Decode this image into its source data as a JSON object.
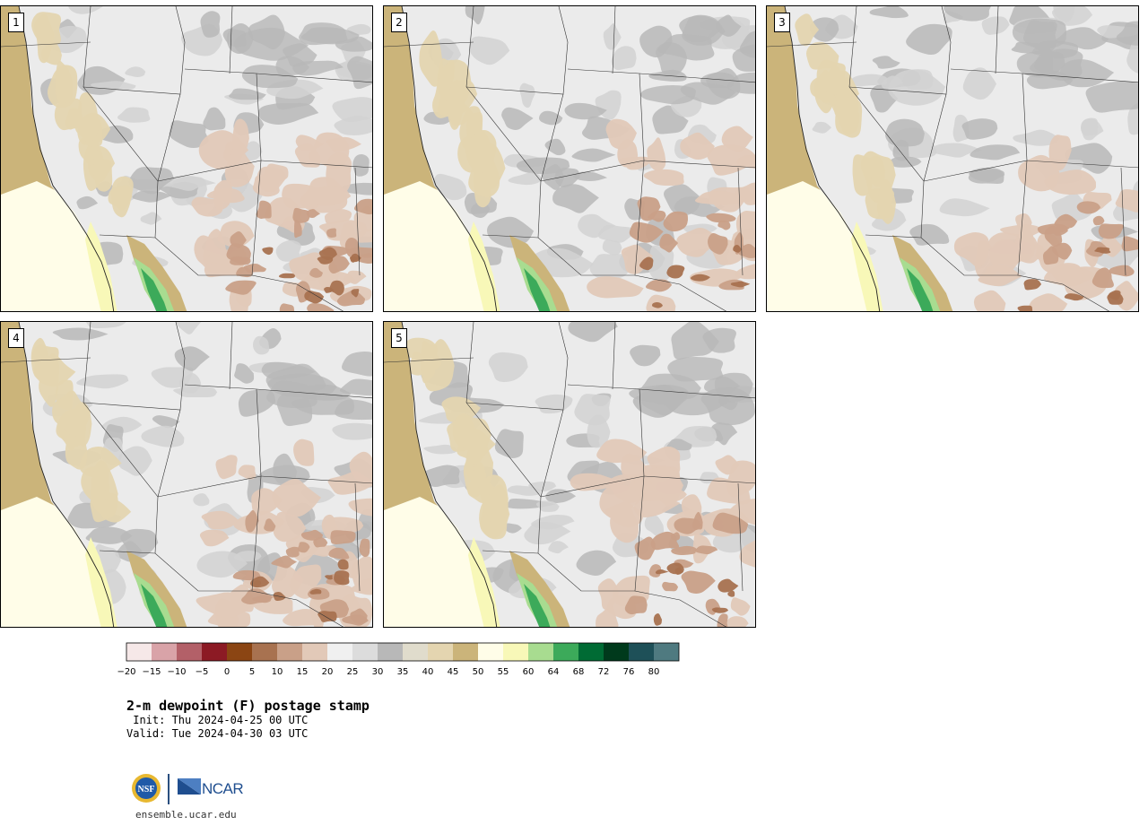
{
  "panels": [
    {
      "number": "1",
      "variant": 0
    },
    {
      "number": "2",
      "variant": 1
    },
    {
      "number": "3",
      "variant": 2
    },
    {
      "number": "4",
      "variant": 3
    },
    {
      "number": "5",
      "variant": 4
    }
  ],
  "legend": {
    "ticks": [
      "-20",
      "-15",
      "-10",
      "-5",
      "0",
      "5",
      "10",
      "15",
      "20",
      "25",
      "30",
      "35",
      "40",
      "45",
      "50",
      "55",
      "60",
      "64",
      "68",
      "72",
      "76",
      "80"
    ],
    "colors": [
      "#f6e8e8",
      "#d9a3a8",
      "#b36068",
      "#8c1a24",
      "#8b4513",
      "#a87250",
      "#c9a088",
      "#e2c9b8",
      "#f0f0f0",
      "#dcdcdc",
      "#b8b8b8",
      "#e0dccc",
      "#e4d5b0",
      "#cbb47a",
      "#fffde8",
      "#f8f8b8",
      "#a8dc90",
      "#3caa5a",
      "#006b34",
      "#003a1c",
      "#1e5058",
      "#4f7a80"
    ]
  },
  "title": "2-m dewpoint (F) postage stamp",
  "init": " Init: Thu 2024-04-25 00 UTC",
  "valid": "Valid: Tue 2024-04-30 03 UTC",
  "logos": {
    "nsf": "NSF",
    "ncar": "NCAR",
    "site": "ensemble.ucar.edu"
  },
  "map_colors": {
    "ocean": "#cbb47a",
    "bright": "#fffde8",
    "pale": "#f8f8b8",
    "green": "#3caa5a",
    "lightgreen": "#a8dc90",
    "grey_light": "#ebebeb",
    "grey_mid": "#d2d2d2",
    "grey_dark": "#b8b8b8",
    "tan": "#e4d5b0",
    "brown_light": "#e2c9b8",
    "brown_mid": "#c9a088",
    "brown_dark": "#a87250"
  }
}
